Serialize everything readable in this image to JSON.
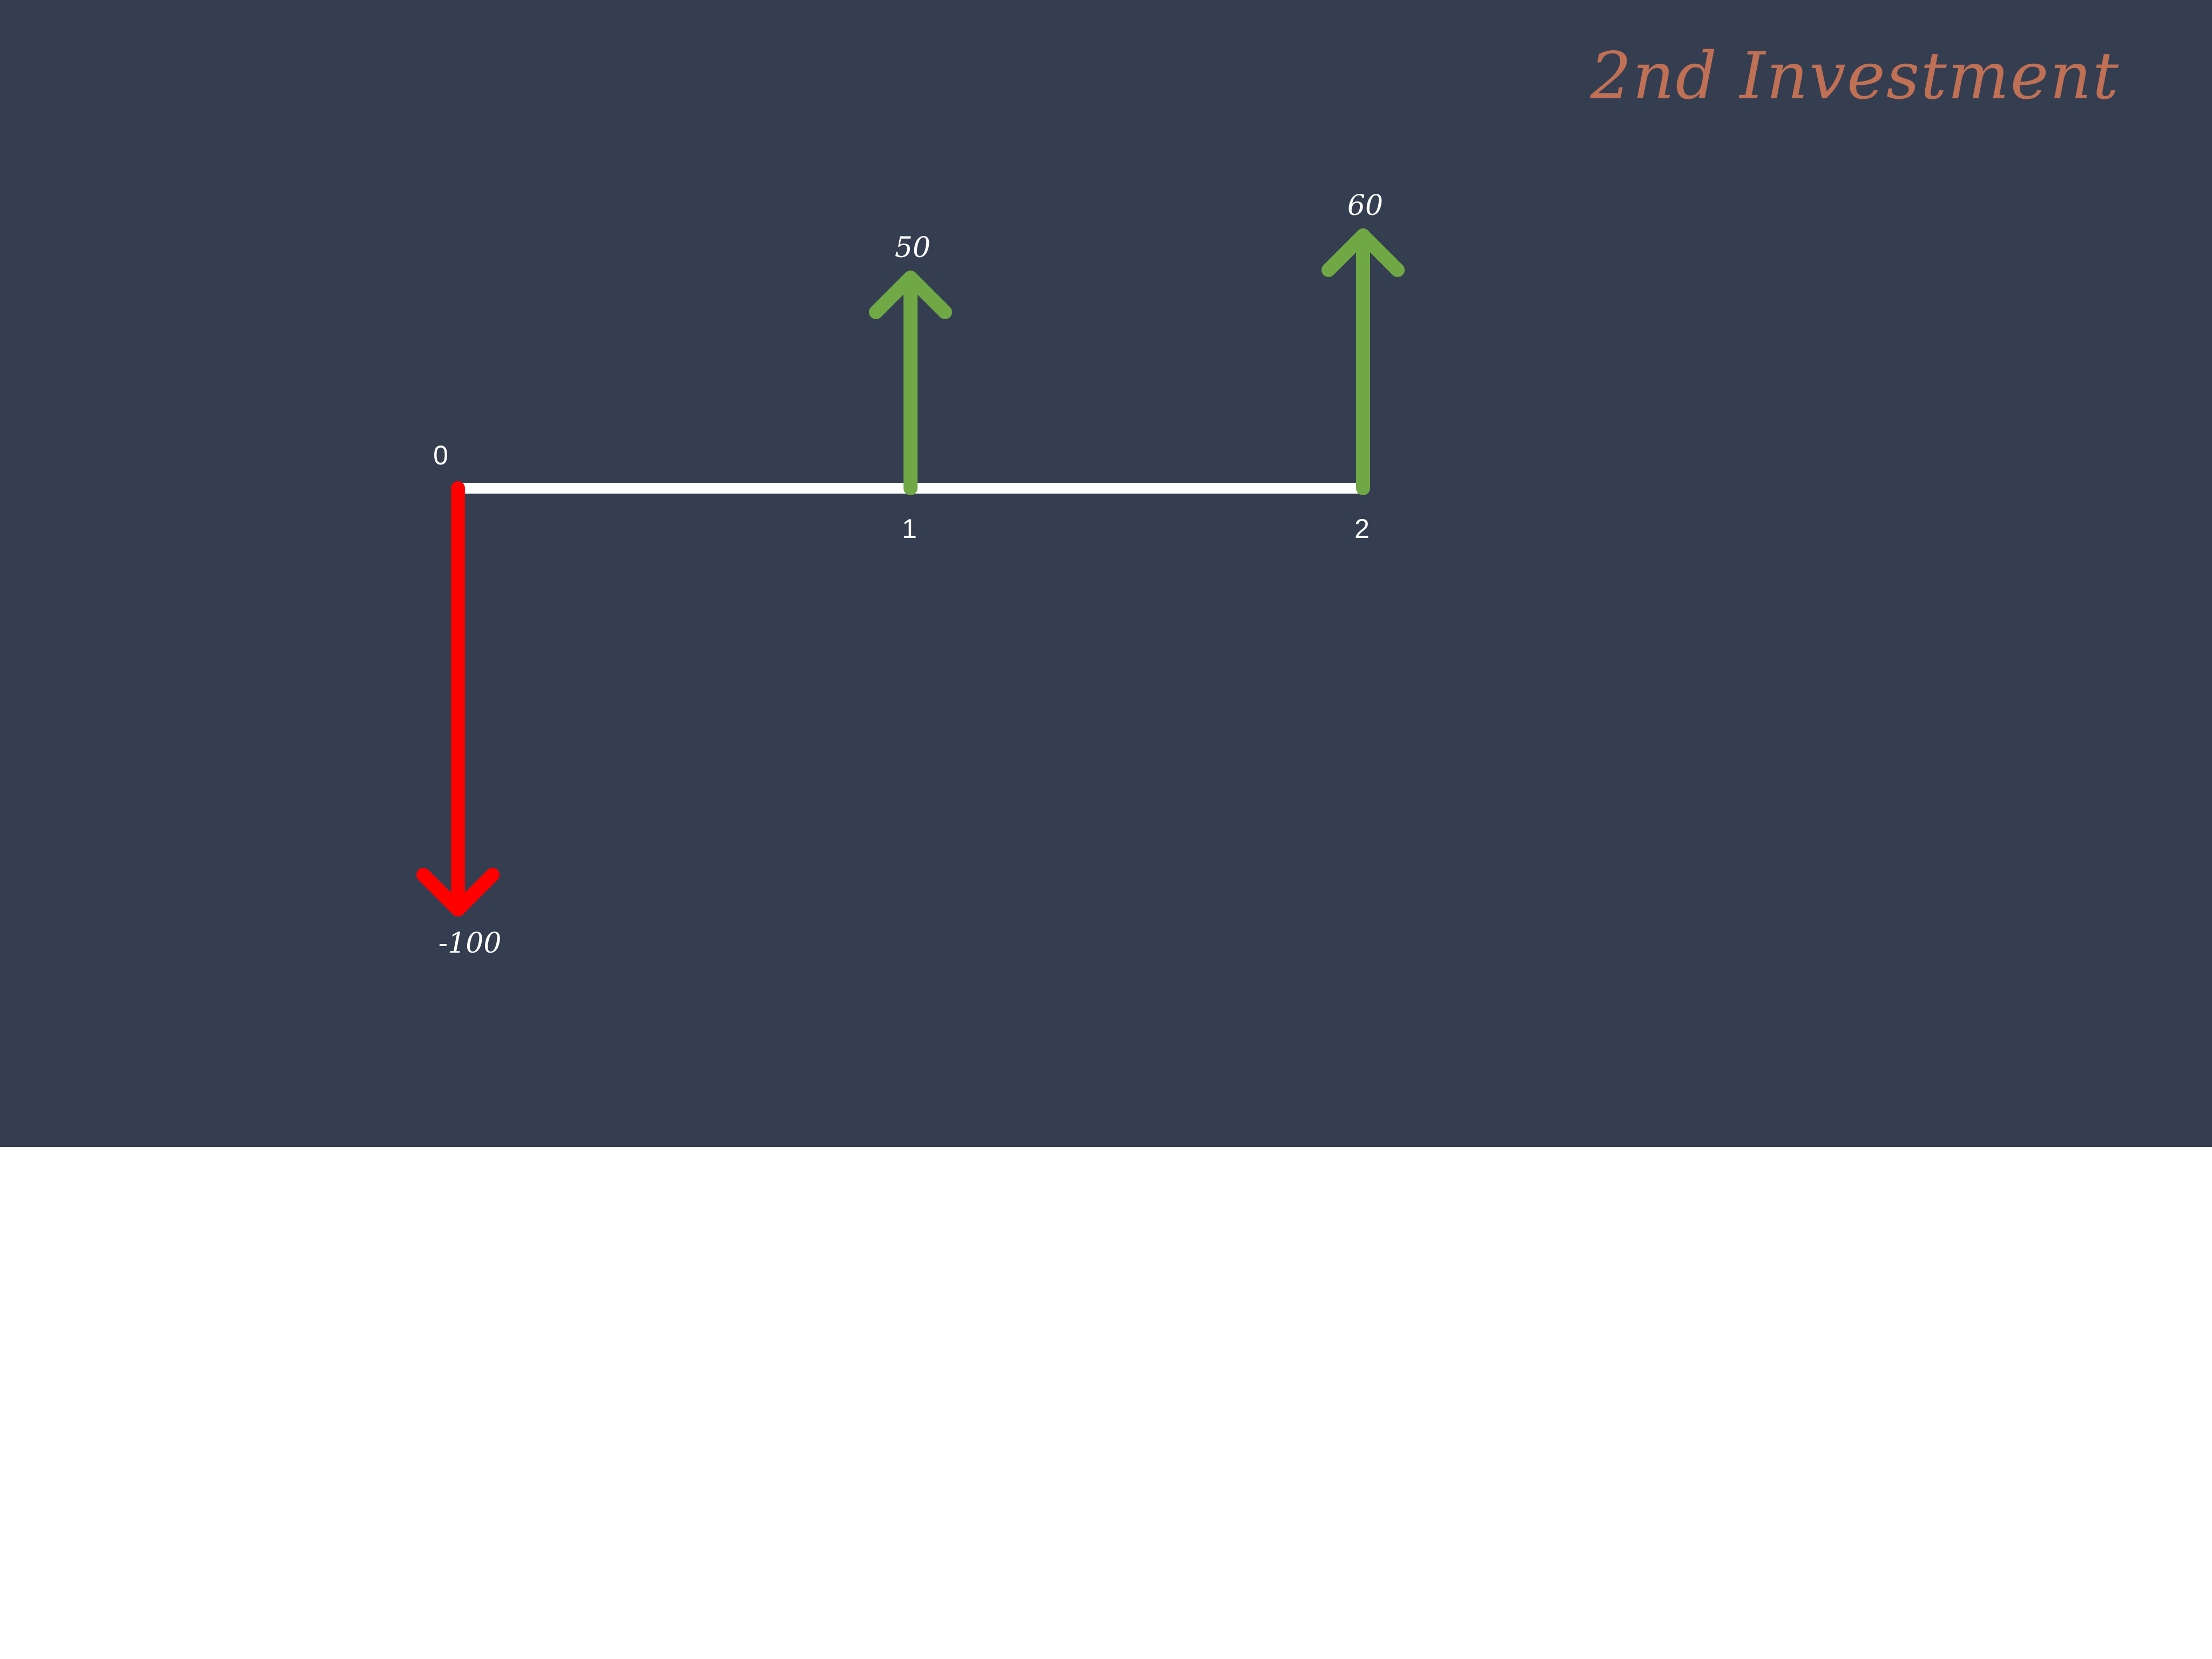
{
  "title": "2nd Investment",
  "colors": {
    "background": "#343e50",
    "timeline": "#ffffff",
    "inflow": "#6fa844",
    "outflow": "#ff0000",
    "title": "#c07055"
  },
  "chart_data": {
    "type": "cash-flow-timeline",
    "periods": [
      "0",
      "1",
      "2"
    ],
    "cash_flows": [
      {
        "period": "0",
        "value": -100,
        "label": "-100",
        "direction": "outflow"
      },
      {
        "period": "1",
        "value": 50,
        "label": "50",
        "direction": "inflow"
      },
      {
        "period": "2",
        "value": 60,
        "label": "60",
        "direction": "inflow"
      }
    ]
  }
}
